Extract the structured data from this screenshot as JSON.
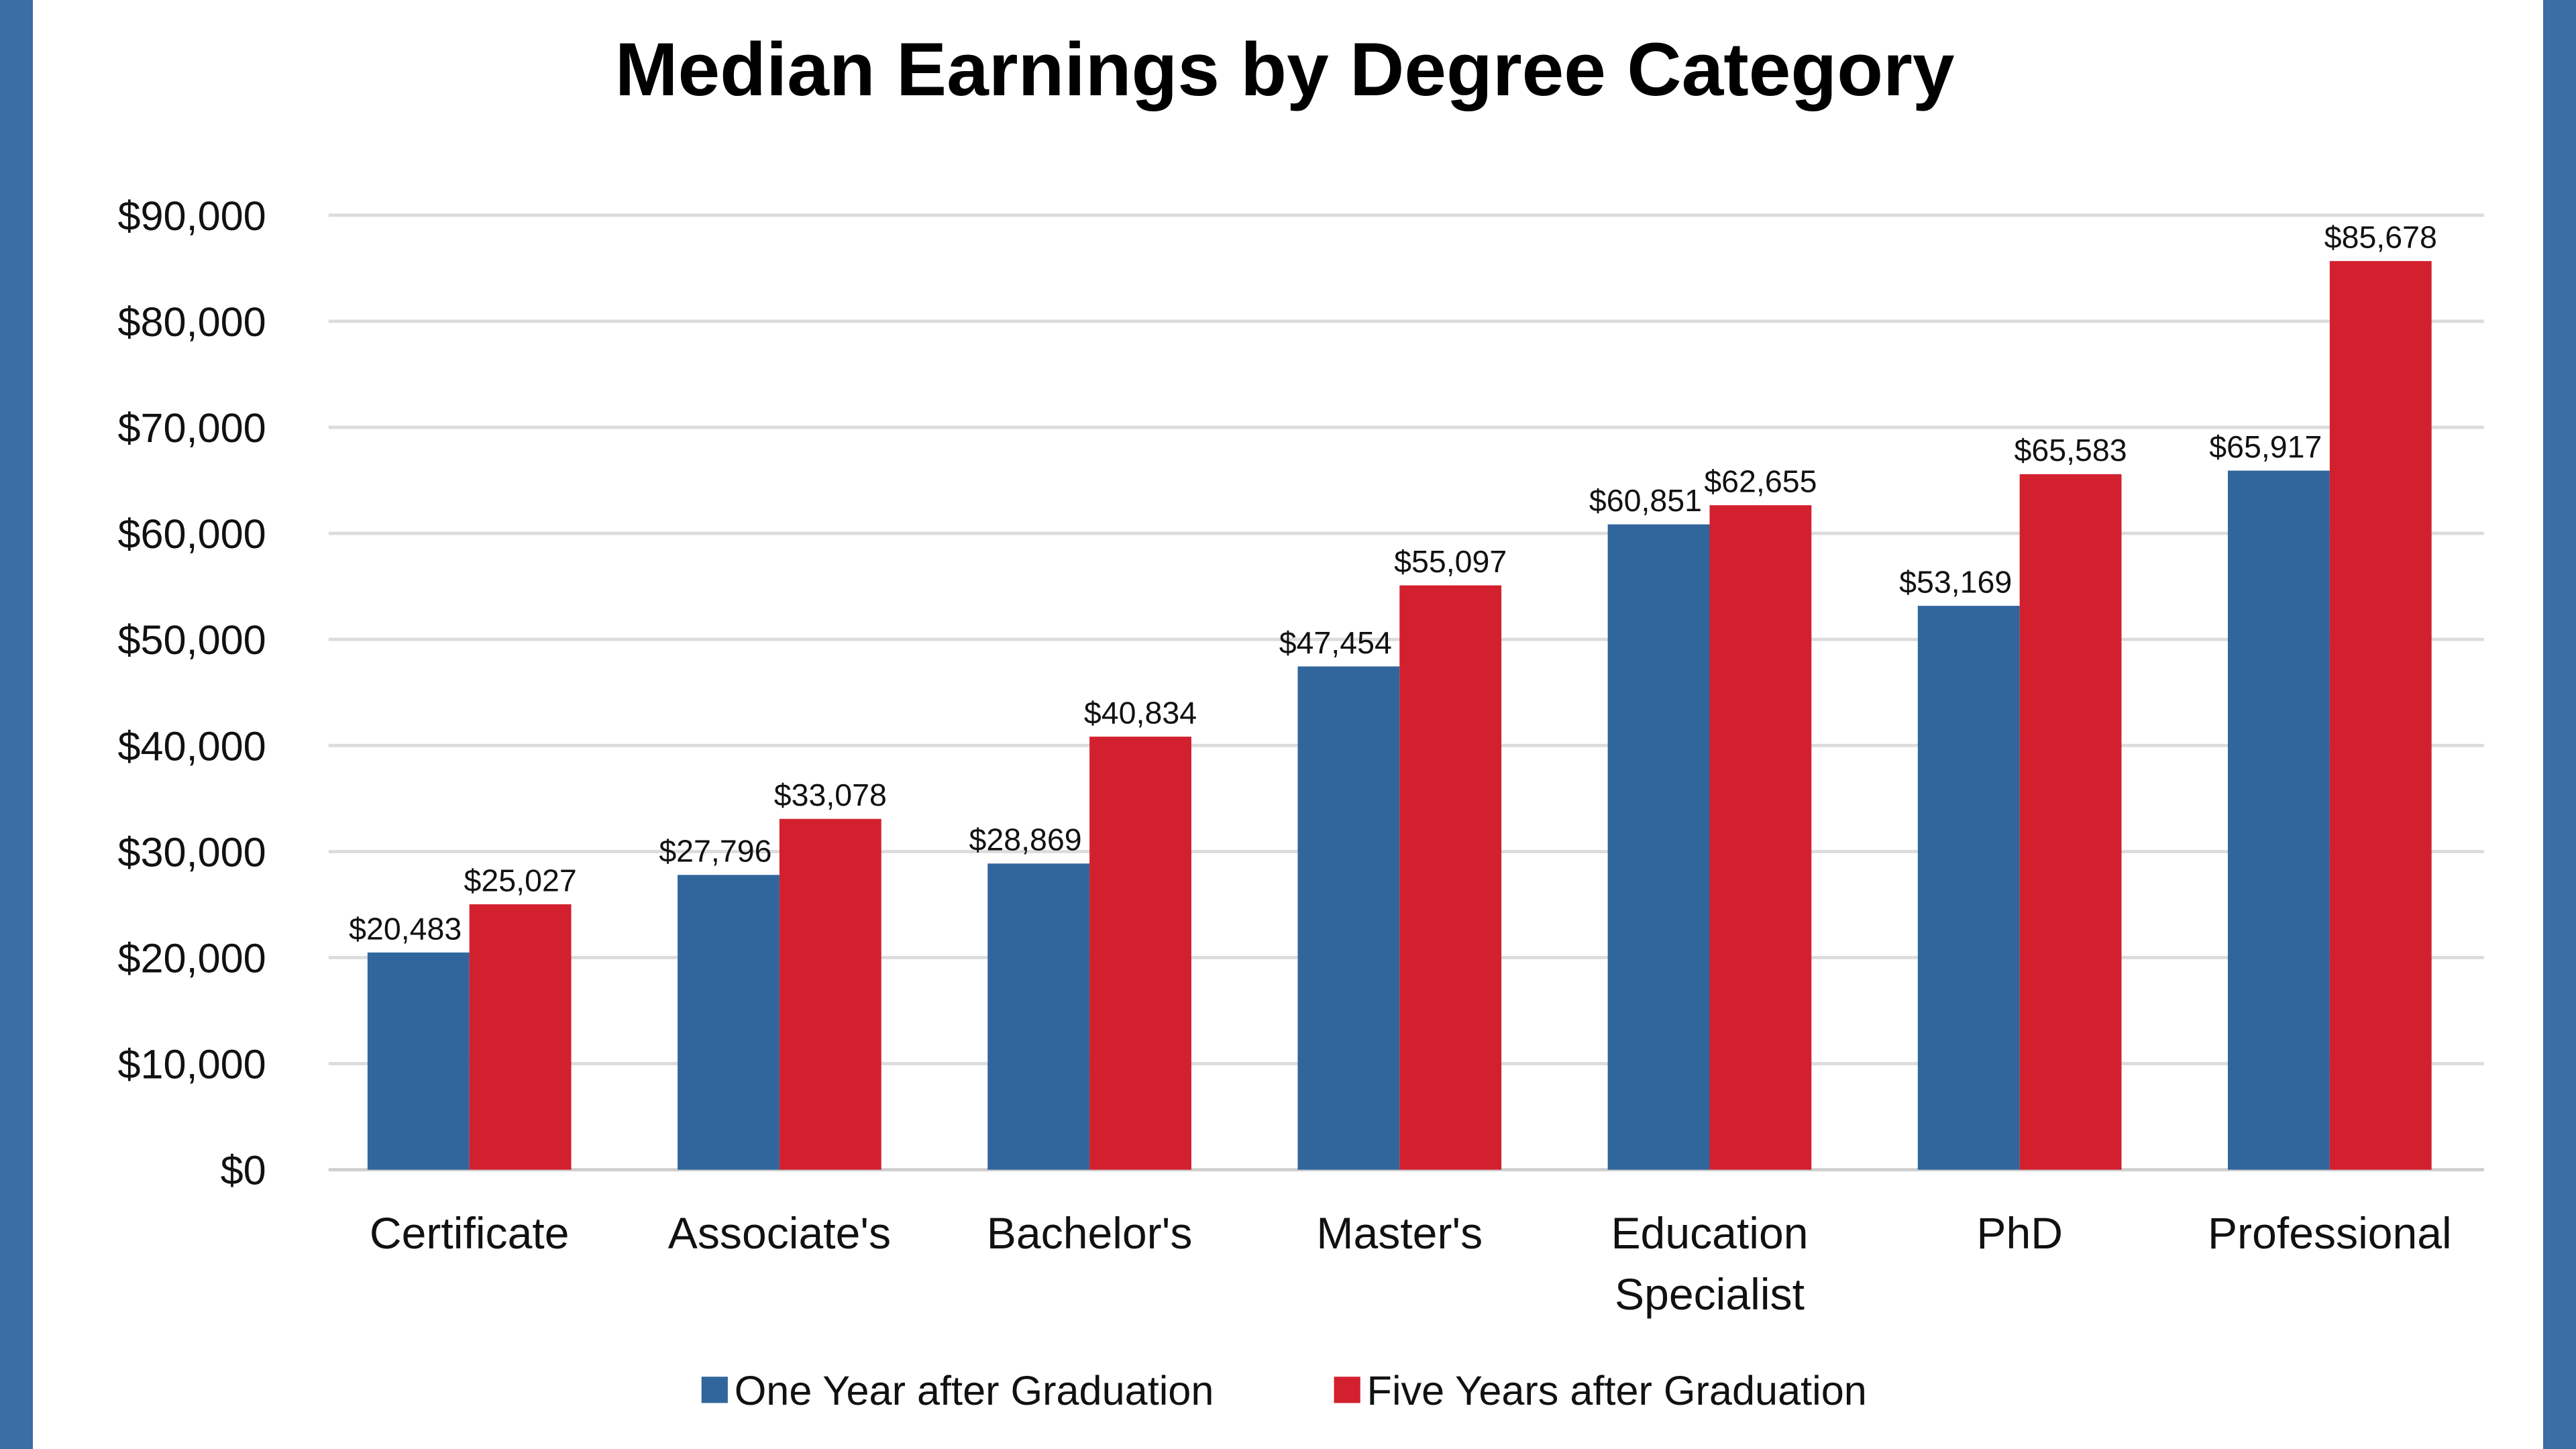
{
  "chart_data": {
    "type": "bar",
    "title": "Median Earnings by Degree Category",
    "xlabel": "",
    "ylabel": "",
    "categories": [
      "Certificate",
      "Associate's",
      "Bachelor's",
      "Master's",
      "Education Specialist",
      "PhD",
      "Professional"
    ],
    "series": [
      {
        "name": "One Year after Graduation",
        "color": "#31669c",
        "values": [
          20483,
          27796,
          28869,
          47454,
          60851,
          53169,
          65917
        ],
        "labels": [
          "$20,483",
          "$27,796",
          "$28,869",
          "$47,454",
          "$60,851",
          "$53,169",
          "$65,917"
        ]
      },
      {
        "name": "Five Years after Graduation",
        "color": "#d2202f",
        "values": [
          25027,
          33078,
          40834,
          55097,
          62655,
          65583,
          85678
        ],
        "labels": [
          "$25,027",
          "$33,078",
          "$40,834",
          "$55,097",
          "$62,655",
          "$65,583",
          "$85,678"
        ]
      }
    ],
    "ylim": [
      0,
      90000
    ],
    "yticks": [
      0,
      10000,
      20000,
      30000,
      40000,
      50000,
      60000,
      70000,
      80000,
      90000
    ],
    "ytick_labels": [
      "$0",
      "$10,000",
      "$20,000",
      "$30,000",
      "$40,000",
      "$50,000",
      "$60,000",
      "$70,000",
      "$80,000",
      "$90,000"
    ],
    "grid": true,
    "legend_position": "bottom",
    "frame_color": "#3a6ea5"
  }
}
